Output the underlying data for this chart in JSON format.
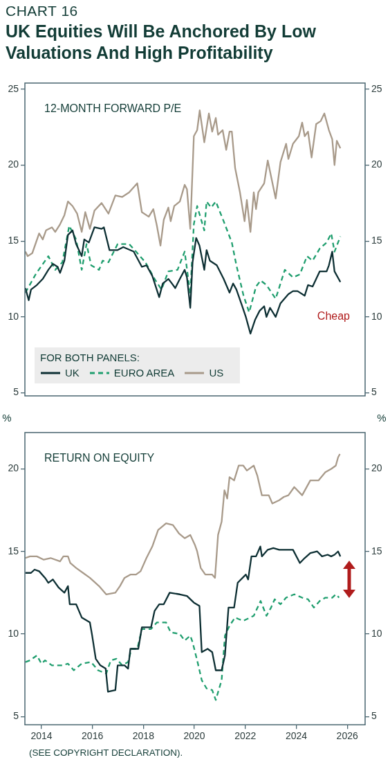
{
  "chart_data": [
    {
      "type": "line",
      "title": "UK Equities Will Be Anchored By Low Valuations And High Profitability",
      "subtitle": "12-MONTH FORWARD P/E",
      "legend_title": "FOR BOTH PANELS:",
      "legend": "bottom left",
      "tick_labels": "y",
      "annotations": [
        "CHART 16",
        "Cheap"
      ],
      "xlim": [
        2013.35,
        2026.7
      ],
      "ylim": [
        4.8,
        25.4
      ],
      "yticks": [
        5,
        10,
        15,
        20,
        25
      ],
      "y2lim": [
        4.8,
        25.4
      ],
      "y2ticks": [
        5,
        10,
        15,
        20,
        25
      ],
      "series": [
        {
          "name": "UK",
          "color": "#0d2f33",
          "line_style": "solid",
          "x": [
            2013.37,
            2013.5,
            2013.59,
            2013.82,
            2014.05,
            2014.27,
            2014.45,
            2014.63,
            2014.73,
            2014.9,
            2015.04,
            2015.22,
            2015.36,
            2015.58,
            2015.68,
            2015.86,
            2016.08,
            2016.36,
            2016.45,
            2016.67,
            2016.99,
            2017.21,
            2017.62,
            2017.94,
            2018.12,
            2018.35,
            2018.62,
            2018.76,
            2018.98,
            2019.12,
            2019.25,
            2019.43,
            2019.62,
            2019.71,
            2019.84,
            2019.93,
            2020.07,
            2020.2,
            2020.39,
            2020.48,
            2020.61,
            2020.88,
            2021.15,
            2021.38,
            2021.52,
            2021.65,
            2021.88,
            2022.02,
            2022.2,
            2022.38,
            2022.56,
            2022.74,
            2022.83,
            2022.97,
            2023.19,
            2023.38,
            2023.69,
            2023.87,
            2024.05,
            2024.33,
            2024.46,
            2024.64,
            2024.92,
            2025.19,
            2025.28,
            2025.41,
            2025.5,
            2025.73
          ],
          "values": [
            11.9,
            11.1,
            11.8,
            12.1,
            12.5,
            13.1,
            13.5,
            13.3,
            12.9,
            13.7,
            15.4,
            15.7,
            14.8,
            14,
            15.1,
            14.9,
            15.9,
            15.8,
            15.9,
            14.4,
            14.4,
            14.6,
            14.3,
            13.3,
            13.4,
            12.7,
            11.3,
            12.2,
            12.5,
            12.2,
            11.9,
            12.5,
            13.1,
            12.6,
            10.6,
            13.6,
            15.2,
            14.7,
            13.1,
            14.4,
            13.7,
            13.4,
            12.5,
            11.6,
            12.2,
            11.8,
            10.7,
            10,
            8.9,
            9.8,
            10.4,
            10.7,
            10,
            10.6,
            10,
            10.9,
            11.5,
            11.7,
            11.7,
            11.4,
            12.1,
            12,
            13,
            13,
            13.4,
            14.3,
            13,
            12.3
          ]
        },
        {
          "name": "EURO AREA",
          "color": "#1f9e6e",
          "line_style": "dashed",
          "x": [
            2013.37,
            2013.77,
            2014.27,
            2014.54,
            2014.82,
            2015.09,
            2015.36,
            2015.58,
            2015.77,
            2015.95,
            2016.26,
            2016.4,
            2016.63,
            2016.99,
            2017.44,
            2017.71,
            2018.08,
            2018.44,
            2018.71,
            2018.98,
            2019.34,
            2019.62,
            2019.84,
            2019.98,
            2020.11,
            2020.39,
            2020.48,
            2020.66,
            2020.84,
            2021.15,
            2021.47,
            2021.65,
            2021.93,
            2022.15,
            2022.42,
            2022.6,
            2022.83,
            2023.19,
            2023.55,
            2023.87,
            2024.14,
            2024.42,
            2024.64,
            2024.92,
            2025.19,
            2025.37,
            2025.5,
            2025.73
          ],
          "values": [
            11.6,
            12.8,
            14,
            13.1,
            13.6,
            16,
            15.1,
            13.1,
            14.8,
            13.4,
            13.1,
            13.7,
            13.6,
            14.8,
            14.8,
            14.3,
            13.6,
            12.5,
            11.8,
            13,
            13.1,
            14.3,
            11.5,
            16.1,
            17.3,
            15.7,
            17.6,
            17.2,
            17.6,
            16.3,
            14.9,
            13.4,
            11.4,
            10.3,
            12,
            12.4,
            12.1,
            11.2,
            13.1,
            12.6,
            12.8,
            14,
            13.7,
            14.5,
            14.9,
            15.5,
            14.3,
            15.3
          ]
        },
        {
          "name": "US",
          "color": "#a89a8a",
          "line_style": "solid",
          "x": [
            2013.37,
            2013.46,
            2013.64,
            2013.91,
            2014.05,
            2014.18,
            2014.41,
            2014.54,
            2014.73,
            2014.9,
            2015.04,
            2015.22,
            2015.4,
            2015.58,
            2015.72,
            2015.9,
            2016.08,
            2016.36,
            2016.63,
            2016.9,
            2017.17,
            2017.44,
            2017.76,
            2017.94,
            2018.21,
            2018.39,
            2018.53,
            2018.67,
            2018.8,
            2018.98,
            2019.07,
            2019.21,
            2019.43,
            2019.62,
            2019.71,
            2019.84,
            2019.98,
            2020.11,
            2020.21,
            2020.39,
            2020.57,
            2020.7,
            2020.84,
            2020.93,
            2021.11,
            2021.25,
            2021.38,
            2021.47,
            2021.6,
            2021.79,
            2021.97,
            2022.06,
            2022.2,
            2022.33,
            2022.42,
            2022.51,
            2022.74,
            2022.88,
            2023.19,
            2023.38,
            2023.6,
            2023.69,
            2023.87,
            2024.1,
            2024.23,
            2024.33,
            2024.46,
            2024.6,
            2024.78,
            2024.96,
            2025.1,
            2025.28,
            2025.41,
            2025.5,
            2025.59,
            2025.73
          ],
          "values": [
            14.3,
            14,
            14.2,
            15.5,
            15.1,
            15.7,
            15.9,
            15.6,
            16.1,
            16.7,
            17.6,
            17.3,
            16.8,
            15.6,
            16.9,
            15.8,
            17,
            17.5,
            16.8,
            18,
            17.9,
            18.2,
            18.8,
            16.9,
            16.6,
            17.1,
            16,
            14.7,
            16.4,
            17.2,
            16.3,
            17.3,
            17.6,
            18.7,
            18.4,
            15.8,
            21.9,
            22.3,
            23.6,
            21.5,
            23.4,
            22.2,
            23.1,
            22,
            22.3,
            21,
            22.2,
            22.2,
            19.8,
            18.2,
            16.3,
            17.7,
            15.6,
            18.2,
            17.1,
            18.2,
            18.8,
            20.3,
            17.8,
            20.2,
            21.4,
            20.4,
            21.4,
            21.9,
            22.8,
            21.9,
            22.2,
            20.5,
            22.7,
            22.9,
            23.4,
            22.3,
            21.7,
            20,
            21.6,
            21.1
          ]
        }
      ]
    },
    {
      "type": "line",
      "subtitle": "RETURN ON EQUITY",
      "ylabel": "%",
      "y2label": "%",
      "annotations": [
        "(SEE COPYRIGHT DECLARATION)."
      ],
      "xlim": [
        2013.35,
        2026.7
      ],
      "xticks": [
        2014,
        2016,
        2018,
        2020,
        2022,
        2024,
        2026
      ],
      "ylim": [
        4.5,
        22.2
      ],
      "yticks": [
        5,
        10,
        15,
        20
      ],
      "y2lim": [
        4.5,
        22.2
      ],
      "y2ticks": [
        5,
        10,
        15,
        20
      ],
      "series": [
        {
          "color": "#0d2f33",
          "line_style": "solid",
          "x": [
            2013.37,
            2013.59,
            2013.73,
            2013.91,
            2014.14,
            2014.27,
            2014.45,
            2014.68,
            2014.9,
            2015.04,
            2015.11,
            2015.36,
            2015.58,
            2015.9,
            2015.99,
            2016.13,
            2016.31,
            2016.52,
            2016.61,
            2016.9,
            2016.99,
            2017.26,
            2017.4,
            2017.49,
            2017.8,
            2017.94,
            2018.3,
            2018.44,
            2018.62,
            2018.8,
            2019.03,
            2019.43,
            2019.71,
            2019.98,
            2020.2,
            2020.29,
            2020.52,
            2020.7,
            2020.84,
            2021.07,
            2021.2,
            2021.34,
            2021.56,
            2021.7,
            2022.02,
            2022.11,
            2022.24,
            2022.42,
            2022.59,
            2022.65,
            2022.88,
            2023.1,
            2023.33,
            2023.6,
            2023.87,
            2024.14,
            2024.33,
            2024.55,
            2024.82,
            2025.01,
            2025.23,
            2025.37,
            2025.5,
            2025.64,
            2025.73
          ],
          "values": [
            13.7,
            13.7,
            13.9,
            13.8,
            13.4,
            13.1,
            13.3,
            12.8,
            12.5,
            12.9,
            11.8,
            11.8,
            11,
            10.7,
            9.9,
            8.5,
            8.1,
            7.9,
            6.5,
            6.6,
            8.1,
            8.1,
            7.9,
            9.1,
            9.1,
            10.4,
            10.4,
            11.4,
            11.8,
            11.8,
            12.5,
            12.4,
            12.3,
            11.9,
            11.7,
            8.9,
            9.1,
            8.9,
            7.8,
            7.8,
            8.7,
            11.6,
            11.6,
            13.1,
            13.6,
            13.3,
            14.7,
            14.7,
            15.3,
            14.7,
            15.1,
            15.2,
            15.1,
            15.1,
            15.1,
            14.3,
            14.6,
            14.9,
            15,
            14.7,
            14.8,
            14.7,
            14.8,
            15,
            14.7
          ]
        },
        {
          "color": "#1f9e6e",
          "line_style": "dashed",
          "x": [
            2013.37,
            2013.55,
            2013.82,
            2014,
            2014.14,
            2014.41,
            2014.82,
            2015.04,
            2015.27,
            2015.58,
            2015.95,
            2016.22,
            2016.54,
            2016.72,
            2016.94,
            2017.17,
            2017.4,
            2017.53,
            2017.76,
            2017.94,
            2018.3,
            2018.53,
            2018.89,
            2019.07,
            2019.43,
            2019.62,
            2019.84,
            2019.93,
            2020.11,
            2020.29,
            2020.48,
            2020.7,
            2020.84,
            2021.07,
            2021.2,
            2021.38,
            2021.6,
            2021.74,
            2021.92,
            2022.06,
            2022.33,
            2022.6,
            2022.83,
            2023.01,
            2023.15,
            2023.38,
            2023.6,
            2023.92,
            2024.23,
            2024.46,
            2024.69,
            2024.92,
            2025.14,
            2025.41,
            2025.55,
            2025.68
          ],
          "values": [
            8.3,
            8.4,
            8.7,
            8.2,
            8.4,
            8.1,
            8.1,
            8.2,
            7.8,
            8.2,
            8.3,
            7.8,
            7.6,
            8.4,
            8.5,
            8.1,
            8.3,
            9.1,
            9.1,
            10.3,
            10.3,
            10.7,
            10.7,
            10.1,
            10,
            9.6,
            9.9,
            9.5,
            8.4,
            7.2,
            6.7,
            6.6,
            6,
            7.2,
            9.9,
            10.5,
            11,
            10.9,
            10.8,
            10.9,
            11.1,
            12,
            11.1,
            11.6,
            12.1,
            11.8,
            12.2,
            12.4,
            12.2,
            12.1,
            11.6,
            12,
            12.2,
            12.2,
            12.4,
            12.2
          ]
        },
        {
          "color": "#a89a8a",
          "line_style": "solid",
          "x": [
            2013.37,
            2013.55,
            2013.82,
            2014.09,
            2014.36,
            2014.73,
            2014.86,
            2015.04,
            2015.13,
            2015.36,
            2015.63,
            2015.9,
            2016.26,
            2016.54,
            2016.9,
            2017.08,
            2017.26,
            2017.49,
            2017.71,
            2017.89,
            2018.12,
            2018.35,
            2018.58,
            2018.89,
            2019.16,
            2019.39,
            2019.62,
            2019.84,
            2020.02,
            2020.11,
            2020.25,
            2020.43,
            2020.7,
            2020.81,
            2020.93,
            2021.07,
            2021.18,
            2021.29,
            2021.38,
            2021.56,
            2021.74,
            2021.92,
            2022.06,
            2022.33,
            2022.47,
            2022.65,
            2022.92,
            2023.06,
            2023.33,
            2023.51,
            2023.69,
            2023.92,
            2024.23,
            2024.55,
            2024.87,
            2025.14,
            2025.37,
            2025.55,
            2025.64,
            2025.71
          ],
          "values": [
            14.6,
            14.7,
            14.7,
            14.5,
            14.6,
            14.4,
            14.7,
            14.7,
            14.3,
            14,
            13.7,
            13.4,
            12.9,
            12.4,
            12.5,
            12.9,
            13.4,
            13.6,
            13.6,
            13.8,
            14.6,
            15.3,
            16.3,
            16.7,
            16.6,
            16.1,
            15.8,
            16,
            15.4,
            15,
            14,
            13.6,
            13.6,
            13.4,
            16,
            16.8,
            18.7,
            18.2,
            19.5,
            19.3,
            20.2,
            20.2,
            19.9,
            20.2,
            19.6,
            18.4,
            18.4,
            17.9,
            18.1,
            18.3,
            18.4,
            18.9,
            18.4,
            19.3,
            19.3,
            19.8,
            20,
            20.2,
            20.7,
            20.9
          ]
        }
      ]
    }
  ]
}
